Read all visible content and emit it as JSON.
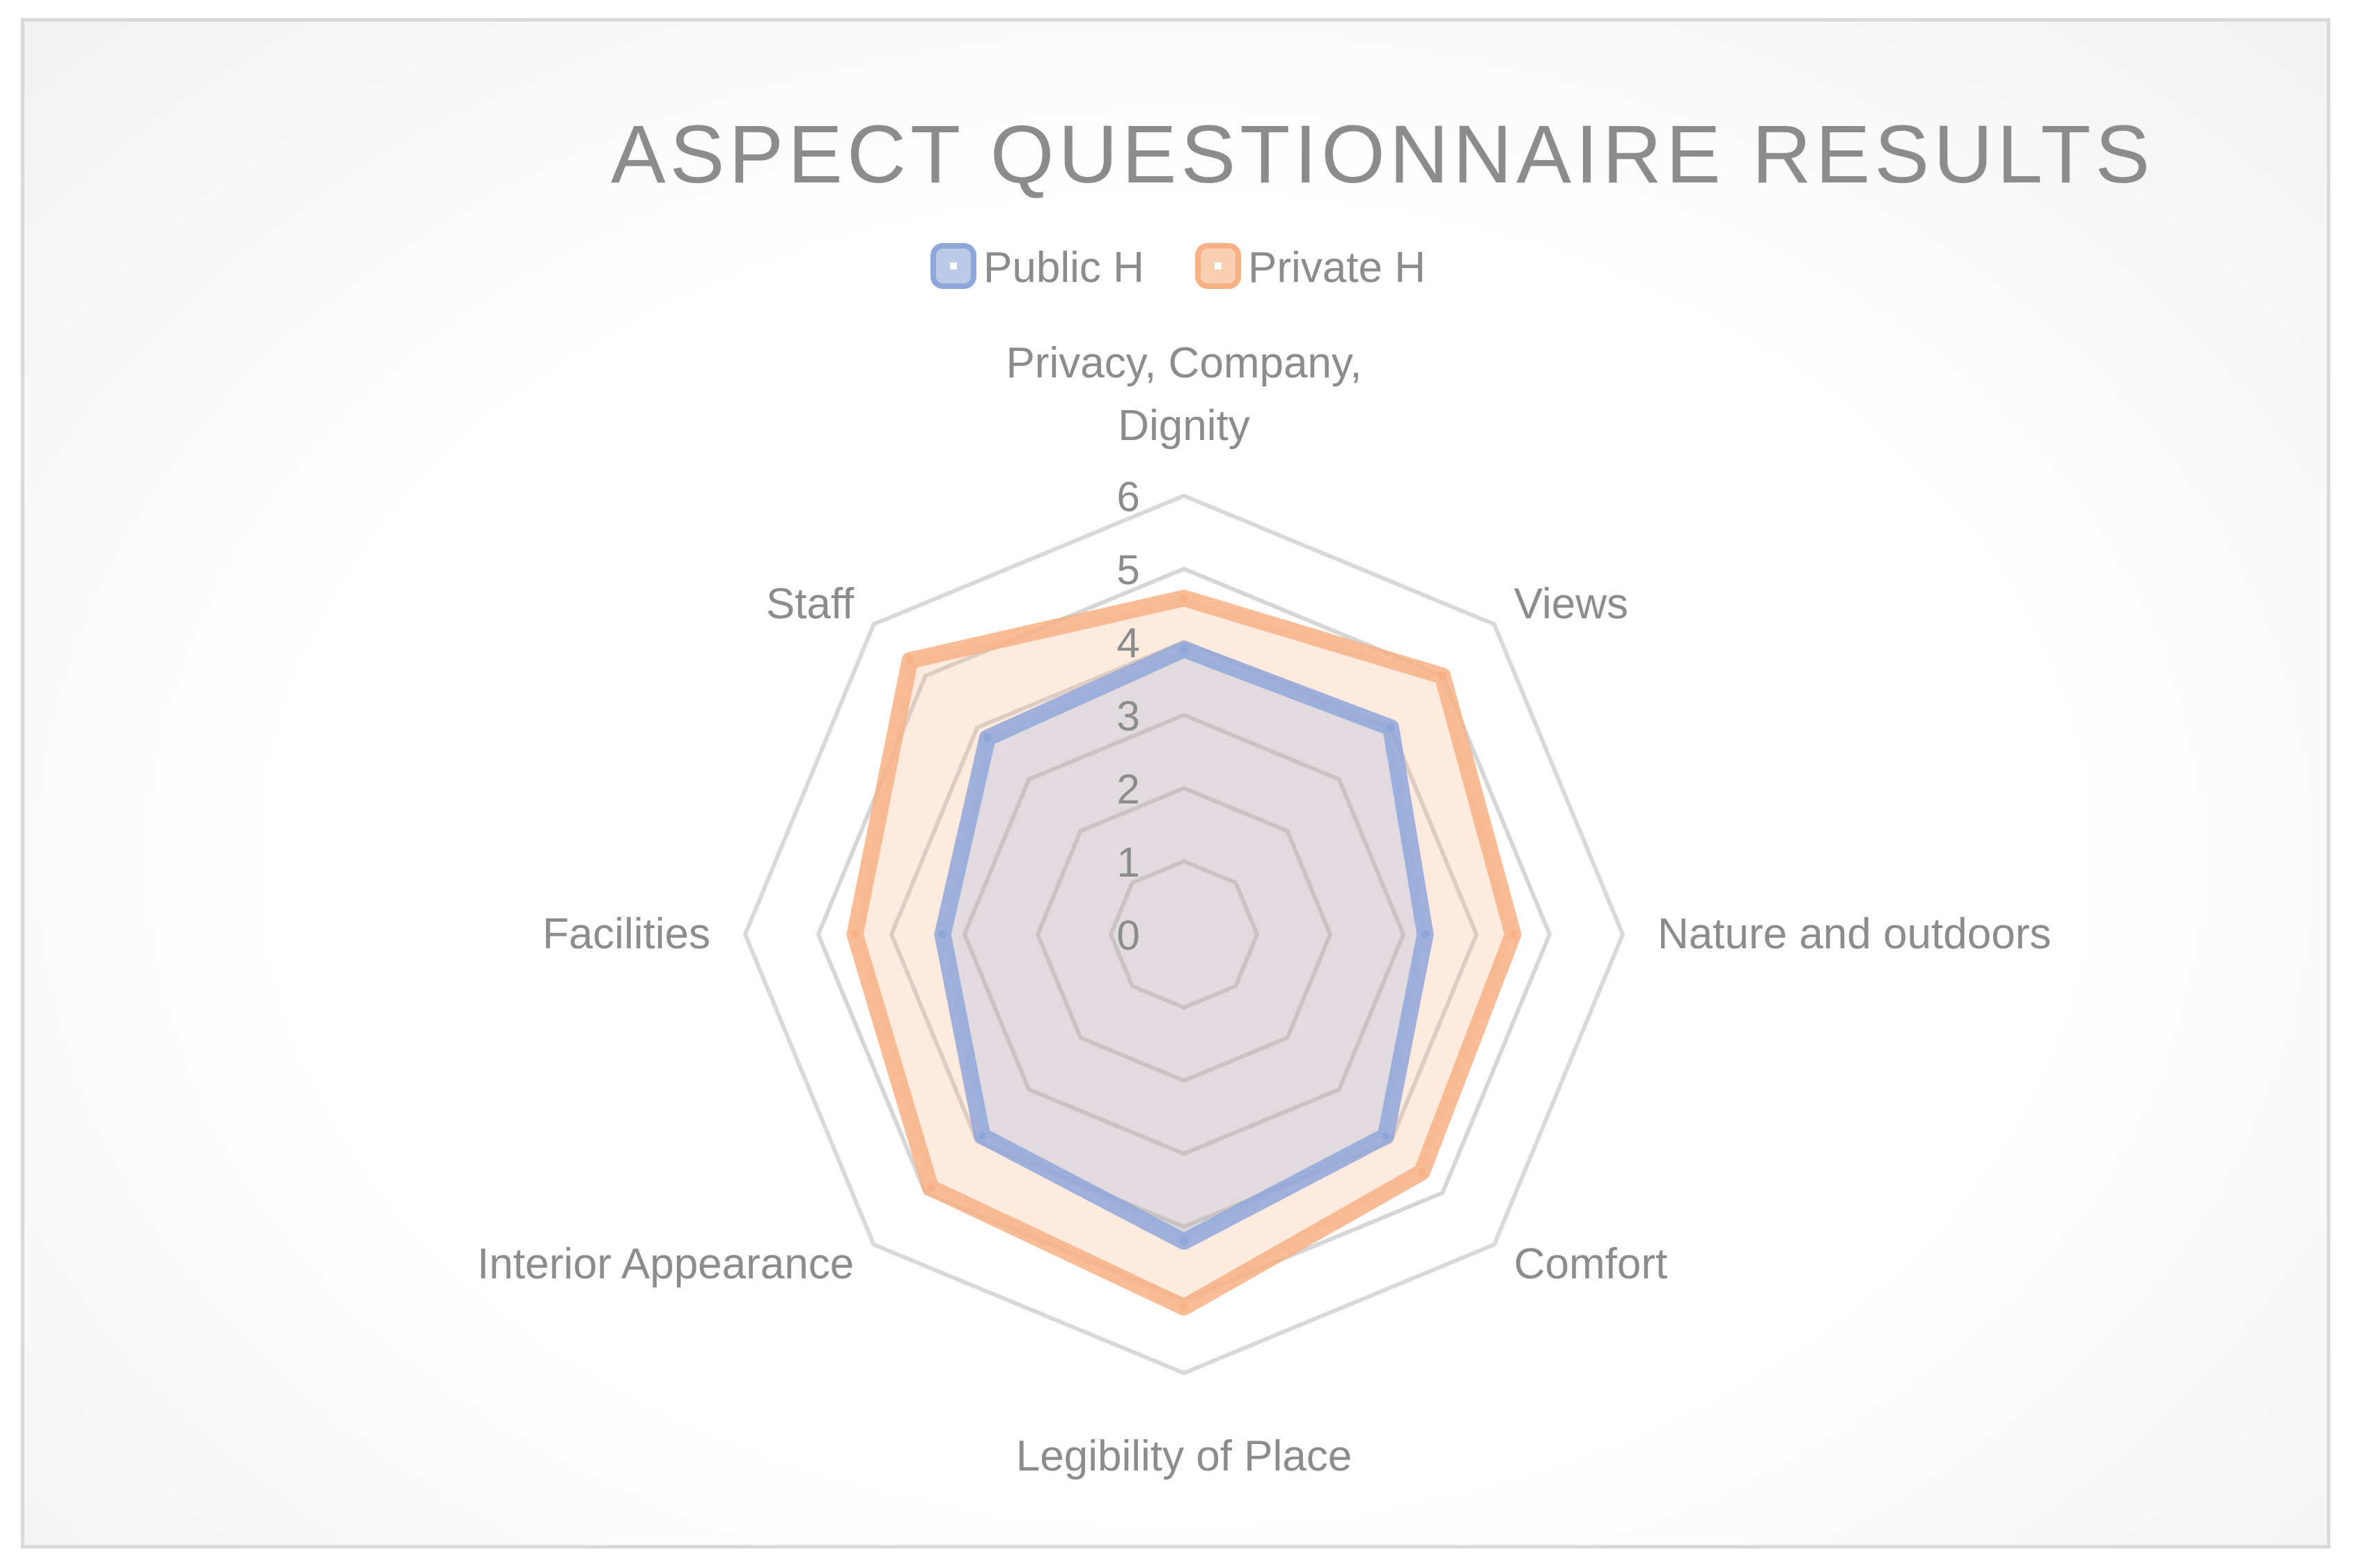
{
  "chart_data": {
    "type": "radar",
    "title": "ASPECT QUESTIONNAIRE RESULTS",
    "categories": [
      "Privacy, Company, Dignity",
      "Views",
      "Nature and outdoors",
      "Comfort",
      "Legibility of Place",
      "Interior Appearance",
      "Facilities",
      "Staff"
    ],
    "category_lines": [
      [
        "Privacy, Company,",
        "Dignity"
      ],
      [
        "Views"
      ],
      [
        "Nature and outdoors"
      ],
      [
        "Comfort"
      ],
      [
        "Legibility of Place"
      ],
      [
        "Interior Appearance"
      ],
      [
        "Facilities"
      ],
      [
        "Staff"
      ]
    ],
    "ticks": [
      "0",
      "1",
      "2",
      "3",
      "4",
      "5",
      "6"
    ],
    "rlim": [
      0,
      6
    ],
    "series": [
      {
        "name": "Public H",
        "color": "#8fa6d9",
        "values": [
          3.9,
          4.0,
          3.3,
          3.9,
          4.2,
          3.9,
          3.3,
          3.8
        ]
      },
      {
        "name": "Private H",
        "color": "#f7b184",
        "values": [
          4.6,
          5.0,
          4.5,
          4.6,
          5.1,
          4.9,
          4.5,
          5.3
        ]
      }
    ],
    "legend_position": "top",
    "grid": true
  }
}
